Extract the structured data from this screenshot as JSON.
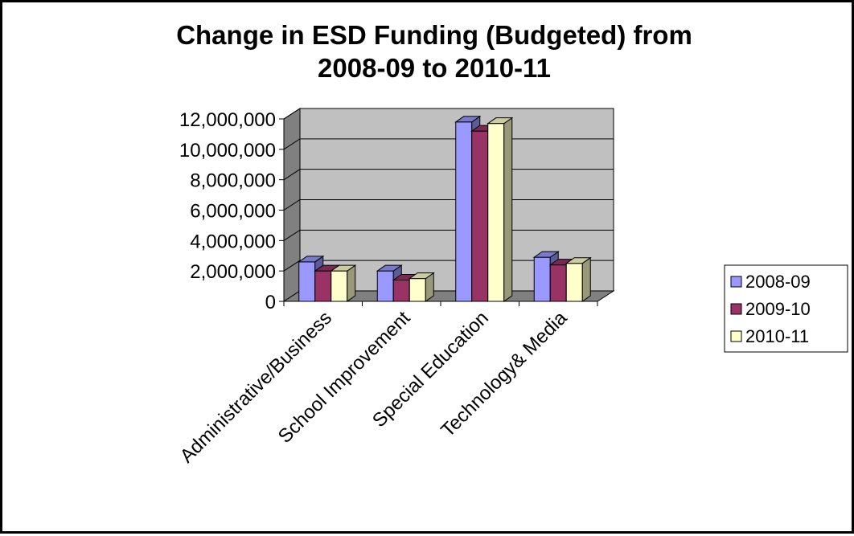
{
  "chart_data": {
    "type": "bar",
    "title_lines": [
      "Change in ESD Funding (Budgeted) from",
      "2008-09 to 2010-11"
    ],
    "categories": [
      "Administrative/Business",
      "School Improvement",
      "Special Education",
      "Technology& Media"
    ],
    "series": [
      {
        "name": "2008-09",
        "color": "#9999ff",
        "values": [
          2600000,
          2000000,
          11800000,
          2900000
        ]
      },
      {
        "name": "2009-10",
        "color": "#993366",
        "values": [
          2000000,
          1400000,
          11200000,
          2400000
        ]
      },
      {
        "name": "2010-11",
        "color": "#ffffcc",
        "values": [
          2000000,
          1500000,
          11700000,
          2500000
        ]
      }
    ],
    "y_ticks": [
      "0",
      "2,000,000",
      "4,000,000",
      "6,000,000",
      "8,000,000",
      "10,000,000",
      "12,000,000"
    ],
    "ylim": [
      0,
      12000000
    ],
    "grid": true,
    "style": "3d-clustered-column",
    "legend_position": "right"
  }
}
